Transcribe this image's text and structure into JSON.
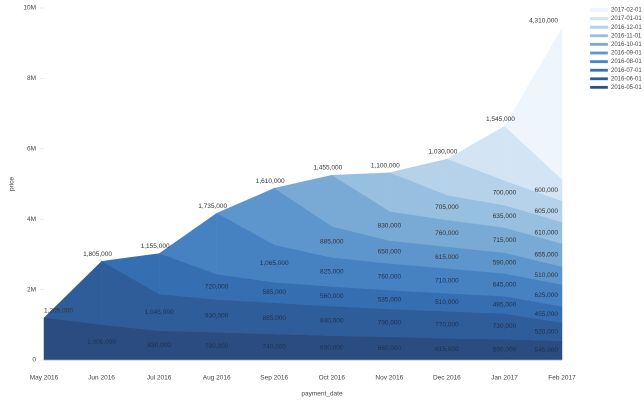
{
  "chart_data": {
    "type": "stacked_area",
    "xlabel": "payment_date",
    "ylabel": "price",
    "categories": [
      "May 2016",
      "Jun 2016",
      "Jul 2016",
      "Aug 2016",
      "Sep 2016",
      "Oct 2016",
      "Nov 2016",
      "Dec 2016",
      "Jan 2017",
      "Feb 2017"
    ],
    "ylim": [
      0,
      10000000
    ],
    "yticks": [
      0,
      {
        "value": 2000000,
        "label": "2M"
      },
      {
        "value": 4000000,
        "label": "4M"
      },
      {
        "value": 6000000,
        "label": "6M"
      },
      {
        "value": 8000000,
        "label": "8M"
      },
      {
        "value": 10000000,
        "label": "10M"
      }
    ],
    "legend": "top-right",
    "series": [
      {
        "name": "2016-05-01",
        "color": "#2b4c7e",
        "values": [
          1205000,
          1005000,
          830000,
          790000,
          740000,
          690000,
          660000,
          615000,
          590000,
          545000
        ],
        "value_labels": [
          "1,205,000",
          "1,005,000",
          "830,000",
          "790,000",
          "740,000",
          "690,000",
          "660,000",
          "615,000",
          "590,000",
          "545,000"
        ]
      },
      {
        "name": "2016-06-01",
        "color": "#2f5d9a",
        "values": [
          null,
          1805000,
          1045000,
          930000,
          885000,
          840000,
          790000,
          770000,
          730000,
          520000
        ],
        "value_labels": [
          null,
          "1,805,000",
          "1,045,000",
          "930,000",
          "885,000",
          "840,000",
          "790,000",
          "770,000",
          "730,000",
          "520,000"
        ]
      },
      {
        "name": "2016-07-01",
        "color": "#356eb1",
        "values": [
          null,
          null,
          1155000,
          720000,
          585000,
          560000,
          535000,
          510000,
          495000,
          455000
        ],
        "value_labels": [
          null,
          null,
          "1,155,000",
          "720,000",
          "585,000",
          "560,000",
          "535,000",
          "510,000",
          "495,000",
          "455,000"
        ]
      },
      {
        "name": "2016-08-01",
        "color": "#4682c2",
        "values": [
          null,
          null,
          null,
          1735000,
          1065000,
          825000,
          760000,
          710000,
          645000,
          625000
        ],
        "value_labels": [
          null,
          null,
          null,
          "1,735,000",
          "1,065,000",
          "825,000",
          "760,000",
          "710,000",
          "645,000",
          "625,000"
        ]
      },
      {
        "name": "2016-09-01",
        "color": "#5d96cc",
        "values": [
          null,
          null,
          null,
          null,
          1610000,
          885000,
          650000,
          615000,
          590000,
          510000
        ],
        "value_labels": [
          null,
          null,
          null,
          null,
          "1,610,000",
          "885,000",
          "650,000",
          "615,000",
          "590,000",
          "510,000"
        ]
      },
      {
        "name": "2016-10-01",
        "color": "#79aad6",
        "values": [
          null,
          null,
          null,
          null,
          null,
          1455000,
          830000,
          760000,
          715000,
          655000
        ],
        "value_labels": [
          null,
          null,
          null,
          null,
          null,
          "1,455,000",
          "830,000",
          "760,000",
          "715,000",
          "655,000"
        ]
      },
      {
        "name": "2016-11-01",
        "color": "#97bfe0",
        "values": [
          null,
          null,
          null,
          null,
          null,
          null,
          1100000,
          705000,
          635000,
          610000
        ],
        "value_labels": [
          null,
          null,
          null,
          null,
          null,
          null,
          "1,100,000",
          "705,000",
          "635,000",
          "610,000"
        ]
      },
      {
        "name": "2016-12-01",
        "color": "#b5d2ea",
        "values": [
          null,
          null,
          null,
          null,
          null,
          null,
          null,
          1030000,
          700000,
          605000
        ],
        "value_labels": [
          null,
          null,
          null,
          null,
          null,
          null,
          null,
          "1,030,000",
          "700,000",
          "605,000"
        ]
      },
      {
        "name": "2017-01-01",
        "color": "#d3e5f4",
        "values": [
          null,
          null,
          null,
          null,
          null,
          null,
          null,
          null,
          1545000,
          600000
        ],
        "value_labels": [
          null,
          null,
          null,
          null,
          null,
          null,
          null,
          null,
          "1,545,000",
          "600,000"
        ]
      },
      {
        "name": "2017-02-01",
        "color": "#eef5fc",
        "values": [
          null,
          null,
          null,
          null,
          null,
          null,
          null,
          null,
          null,
          4310000
        ],
        "value_labels": [
          null,
          null,
          null,
          null,
          null,
          null,
          null,
          null,
          null,
          "4,310,000"
        ]
      }
    ]
  }
}
